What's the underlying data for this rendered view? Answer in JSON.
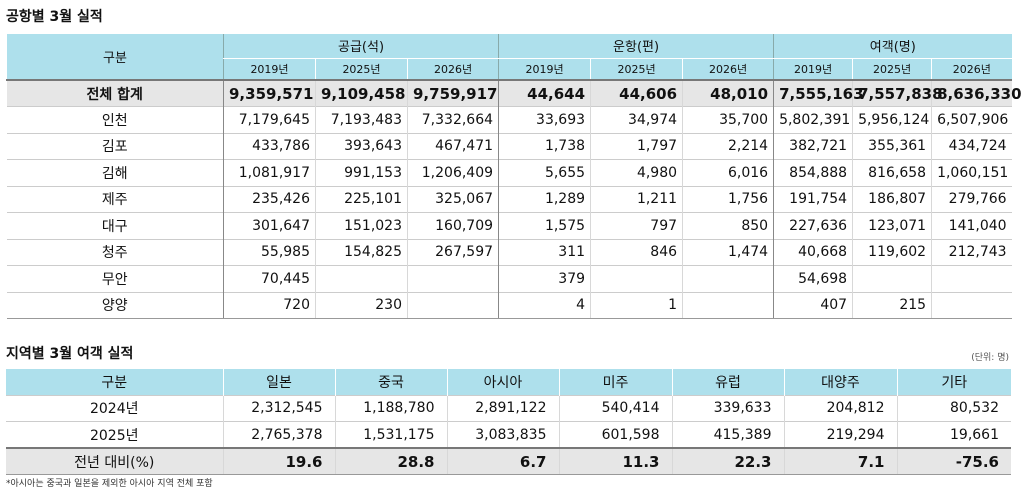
{
  "airport_table": {
    "title": "공항별 3월 실적",
    "corner_label": "구분",
    "groups": [
      "공급(석)",
      "운항(편)",
      "여객(명)"
    ],
    "years": [
      "2019년",
      "2025년",
      "2026년",
      "2019년",
      "2025년",
      "2026년",
      "2019년",
      "2025년",
      "2026년"
    ],
    "rows": [
      {
        "label": "전체 합계",
        "values": [
          "9,359,571",
          "9,109,458",
          "9,759,917",
          "44,644",
          "44,606",
          "48,010",
          "7,555,163",
          "7,557,838",
          "8,636,330"
        ]
      },
      {
        "label": "인천",
        "values": [
          "7,179,645",
          "7,193,483",
          "7,332,664",
          "33,693",
          "34,974",
          "35,700",
          "5,802,391",
          "5,956,124",
          "6,507,906"
        ]
      },
      {
        "label": "김포",
        "values": [
          "433,786",
          "393,643",
          "467,471",
          "1,738",
          "1,797",
          "2,214",
          "382,721",
          "355,361",
          "434,724"
        ]
      },
      {
        "label": "김해",
        "values": [
          "1,081,917",
          "991,153",
          "1,206,409",
          "5,655",
          "4,980",
          "6,016",
          "854,888",
          "816,658",
          "1,060,151"
        ]
      },
      {
        "label": "제주",
        "values": [
          "235,426",
          "225,101",
          "325,067",
          "1,289",
          "1,211",
          "1,756",
          "191,754",
          "186,807",
          "279,766"
        ]
      },
      {
        "label": "대구",
        "values": [
          "301,647",
          "151,023",
          "160,709",
          "1,575",
          "797",
          "850",
          "227,636",
          "123,071",
          "141,040"
        ]
      },
      {
        "label": "청주",
        "values": [
          "55,985",
          "154,825",
          "267,597",
          "311",
          "846",
          "1,474",
          "40,668",
          "119,602",
          "212,743"
        ]
      },
      {
        "label": "무안",
        "values": [
          "70,445",
          "",
          "",
          "379",
          "",
          "",
          "54,698",
          "",
          ""
        ]
      },
      {
        "label": "양양",
        "values": [
          "720",
          "230",
          "",
          "4",
          "1",
          "",
          "407",
          "215",
          ""
        ]
      }
    ]
  },
  "region_table": {
    "title": "지역별 3월 여객 실적",
    "unit": "(단위: 명)",
    "headers": [
      "구분",
      "일본",
      "중국",
      "아시아",
      "미주",
      "유럽",
      "대양주",
      "기타"
    ],
    "rows": [
      {
        "label": "2024년",
        "values": [
          "2,312,545",
          "1,188,780",
          "2,891,122",
          "540,414",
          "339,633",
          "204,812",
          "80,532"
        ]
      },
      {
        "label": "2025년",
        "values": [
          "2,765,378",
          "1,531,175",
          "3,083,835",
          "601,598",
          "415,389",
          "219,294",
          "19,661"
        ]
      },
      {
        "label": "전년 대비(%)",
        "values": [
          "19.6",
          "28.8",
          "6.7",
          "11.3",
          "22.3",
          "7.1",
          "-75.6"
        ]
      }
    ],
    "note": "*아시아는 중국과 일본을 제외한 아시아 지역 전체 포함"
  }
}
